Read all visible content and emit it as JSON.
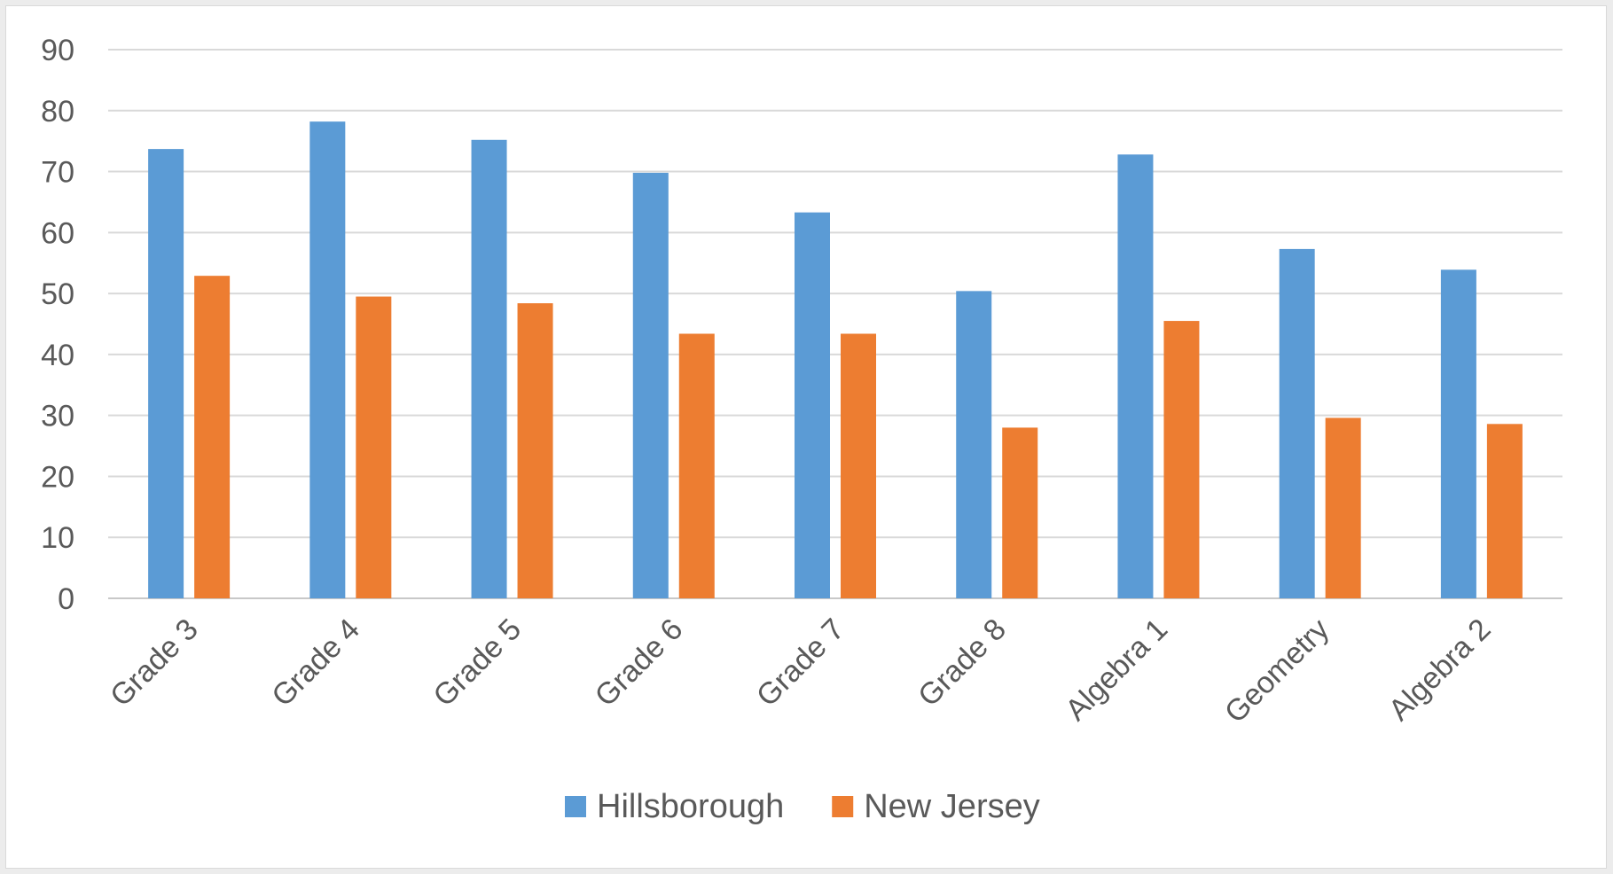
{
  "chart_data": {
    "type": "bar",
    "categories": [
      "Grade 3",
      "Grade 4",
      "Grade 5",
      "Grade 6",
      "Grade 7",
      "Grade 8",
      "Algebra 1",
      "Geometry",
      "Algebra 2"
    ],
    "series": [
      {
        "name": "Hillsborough",
        "color": "#5b9bd5",
        "values": [
          73.7,
          78.2,
          75.2,
          69.8,
          63.3,
          50.4,
          72.8,
          57.3,
          53.9
        ]
      },
      {
        "name": "New Jersey",
        "color": "#ed7d31",
        "values": [
          52.9,
          49.5,
          48.4,
          43.4,
          43.4,
          28.0,
          45.5,
          29.6,
          28.6
        ]
      }
    ],
    "ylim": [
      0,
      90
    ],
    "yticks": [
      0,
      10,
      20,
      30,
      40,
      50,
      60,
      70,
      80,
      90
    ],
    "grid": true,
    "legend_position": "bottom",
    "title": "",
    "xlabel": "",
    "ylabel": ""
  }
}
